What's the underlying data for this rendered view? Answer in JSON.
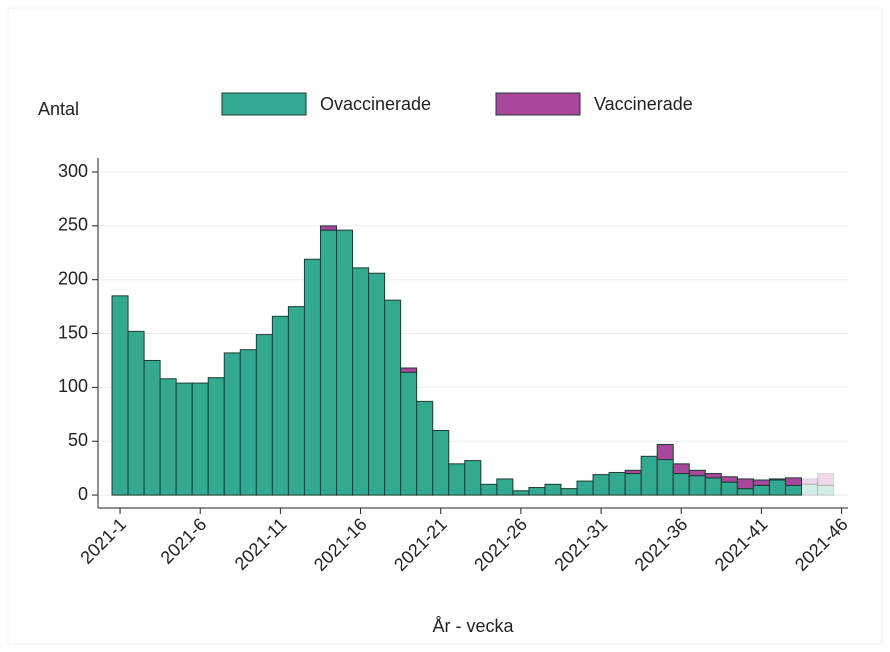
{
  "chart_data": {
    "type": "stacked_bar",
    "y_label": "Antal",
    "x_label": "År - vecka",
    "x": [
      1,
      2,
      3,
      4,
      5,
      6,
      7,
      8,
      9,
      10,
      11,
      12,
      13,
      14,
      15,
      16,
      17,
      18,
      19,
      20,
      21,
      22,
      23,
      24,
      25,
      26,
      27,
      28,
      29,
      30,
      31,
      32,
      33,
      34,
      35,
      36,
      37,
      38,
      39,
      40,
      41,
      42,
      43,
      44,
      45
    ],
    "series": [
      {
        "name": "Ovaccinerade",
        "color": "#33a98f",
        "values": [
          185,
          152,
          125,
          108,
          104,
          104,
          109,
          132,
          135,
          149,
          166,
          175,
          219,
          246,
          246,
          211,
          206,
          181,
          114,
          87,
          60,
          29,
          32,
          10,
          15,
          4,
          7,
          10,
          6,
          13,
          19,
          21,
          20,
          36,
          33,
          20,
          18,
          16,
          12,
          6,
          9,
          14,
          9,
          10,
          9
        ]
      },
      {
        "name": "Vaccinerade",
        "color": "#a8479c",
        "values": [
          0,
          0,
          0,
          0,
          0,
          0,
          0,
          0,
          0,
          0,
          0,
          0,
          0,
          4,
          0,
          0,
          0,
          0,
          4,
          0,
          0,
          0,
          0,
          0,
          0,
          0,
          0,
          0,
          0,
          0,
          0,
          0,
          3,
          0,
          14,
          9,
          5,
          4,
          5,
          9,
          5,
          1,
          7,
          5,
          11
        ]
      }
    ],
    "preliminary_x": [
      44,
      45
    ],
    "xlim": [
      -0.25,
      46.4
    ],
    "xticks": [
      {
        "value": 1,
        "label": "2021-1"
      },
      {
        "value": 6,
        "label": "2021-6"
      },
      {
        "value": 11,
        "label": "2021-11"
      },
      {
        "value": 16,
        "label": "2021-16"
      },
      {
        "value": 21,
        "label": "2021-21"
      },
      {
        "value": 26,
        "label": "2021-26"
      },
      {
        "value": 31,
        "label": "2021-31"
      },
      {
        "value": 36,
        "label": "2021-36"
      },
      {
        "value": 41,
        "label": "2021-41"
      },
      {
        "value": 46,
        "label": "2021-46"
      }
    ],
    "ylim": [
      -12,
      313
    ],
    "yticks": [
      0,
      50,
      100,
      150,
      200,
      250,
      300
    ],
    "grid": true
  }
}
